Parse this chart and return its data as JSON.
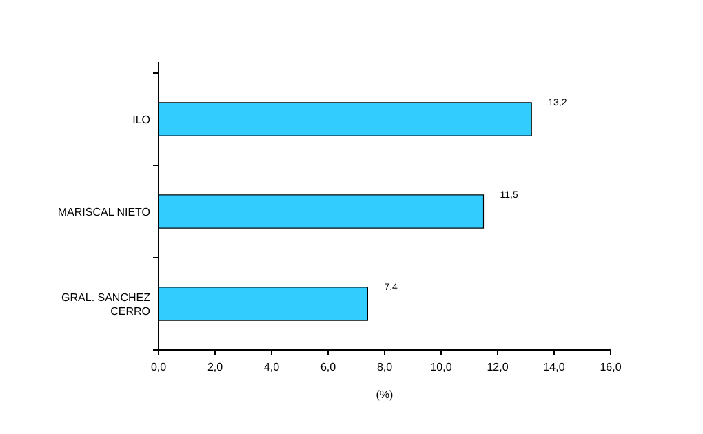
{
  "chart_data": {
    "type": "bar",
    "orientation": "horizontal",
    "categories": [
      "ILO",
      "MARISCAL NIETO",
      "GRAL. SANCHEZ CERRO"
    ],
    "values": [
      13.2,
      11.5,
      7.4
    ],
    "value_labels": [
      "13,2",
      "11,5",
      "7,4"
    ],
    "color": "#33ccff",
    "xlim": [
      0,
      16
    ],
    "xticks": [
      {
        "value": 0,
        "label": "0,0"
      },
      {
        "value": 2,
        "label": "2,0"
      },
      {
        "value": 4,
        "label": "4,0"
      },
      {
        "value": 6,
        "label": "6,0"
      },
      {
        "value": 8,
        "label": "8,0"
      },
      {
        "value": 10,
        "label": "10,0"
      },
      {
        "value": 12,
        "label": "12,0"
      },
      {
        "value": 14,
        "label": "14,0"
      },
      {
        "value": 16,
        "label": "16,0"
      }
    ],
    "xlabel": "(%)",
    "grid": false
  }
}
